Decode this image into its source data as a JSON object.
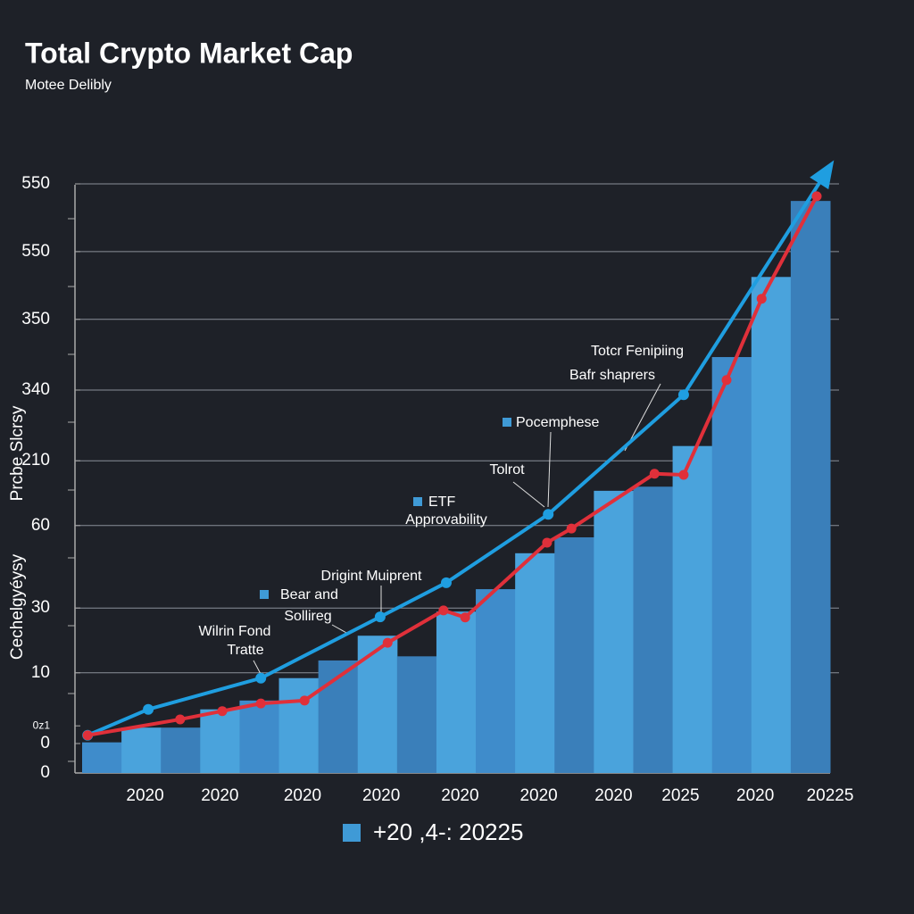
{
  "chart_data": {
    "type": "bar",
    "title": "Total Crypto Market Cap",
    "subtitle": "Motee Delibly",
    "y_axis_labels": [
      "Prcbe Slcrsy",
      "Cechelgyéysy"
    ],
    "categories": [
      null,
      null,
      null,
      null,
      null,
      null,
      null,
      null,
      null,
      null,
      null,
      null,
      null,
      null,
      null,
      null,
      null,
      null,
      null
    ],
    "values": [
      0.52,
      0.77,
      0.77,
      1.08,
      1.23,
      1.61,
      1.91,
      2.33,
      1.98,
      2.74,
      3.12,
      3.73,
      4.0,
      4.79,
      4.86,
      5.55,
      7.06,
      8.42,
      9.71
    ],
    "colors": [
      "#3f8ccb",
      "#4aa3dc",
      "#3a7fba",
      "#4aa3dc",
      "#3f8ccb",
      "#4aa3dc",
      "#3a7fba",
      "#4aa3dc",
      "#3a7fba",
      "#4aa3dc",
      "#3f8ccb",
      "#4aa3dc",
      "#3a7fba",
      "#4aa3dc",
      "#3a7fba",
      "#4aa3dc",
      "#3f8ccb",
      "#4aa3dc",
      "#3a7fba"
    ],
    "lines": [
      {
        "color": "#1f9ee0",
        "x": [
          0.14,
          1.68,
          4.54,
          7.57,
          9.25,
          11.84,
          15.28,
          19.0
        ],
        "values": [
          0.64,
          1.08,
          1.61,
          2.65,
          3.23,
          4.39,
          6.42,
          10.3
        ]
      },
      {
        "color": "#e0303a",
        "x": [
          0.14,
          2.49,
          3.56,
          4.54,
          5.65,
          7.76,
          9.18,
          9.73,
          11.81,
          12.43,
          14.54,
          15.28,
          16.37,
          17.26,
          18.66
        ],
        "values": [
          0.64,
          0.91,
          1.05,
          1.18,
          1.23,
          2.21,
          2.76,
          2.64,
          3.91,
          4.15,
          5.08,
          5.06,
          6.67,
          8.05,
          9.79
        ]
      }
    ],
    "xlim": [
      0,
      19
    ],
    "ylim": [
      0,
      10.5
    ],
    "yticks": [
      {
        "value": 10,
        "label": "550"
      },
      {
        "value": 8.85,
        "label": "550"
      },
      {
        "value": 7.7,
        "label": "350"
      },
      {
        "value": 6.5,
        "label": "340"
      },
      {
        "value": 5.3,
        "label": "210"
      },
      {
        "value": 4.2,
        "label": "60"
      },
      {
        "value": 2.8,
        "label": "30"
      },
      {
        "value": 1.7,
        "label": "10"
      },
      {
        "value": 0.8,
        "label": "0z1"
      },
      {
        "value": 0.5,
        "label": "0"
      },
      0
    ],
    "xticks": [
      {
        "value": 1.6,
        "label": "2020"
      },
      {
        "value": 3.5,
        "label": "2020"
      },
      {
        "value": 5.6,
        "label": "2020"
      },
      {
        "value": 7.6,
        "label": "2020"
      },
      {
        "value": 9.6,
        "label": "2020"
      },
      {
        "value": 11.6,
        "label": "2020"
      },
      {
        "value": 13.5,
        "label": "2020"
      },
      {
        "value": 15.2,
        "label": "2025"
      },
      {
        "value": 17.1,
        "label": "2020"
      },
      {
        "value": 19,
        "label": "20225"
      }
    ],
    "annotations": [
      "Totcr Fenipiing",
      "Bafr shaprers",
      "Pocemphese",
      "Tolrot",
      "ETF",
      "Approvability",
      "Drigint Muiprent",
      "Bear and",
      "Sollireg",
      "Wilrin Fond",
      "Tratte"
    ],
    "legend": "+20 ,4-: 20225",
    "grid": true
  }
}
